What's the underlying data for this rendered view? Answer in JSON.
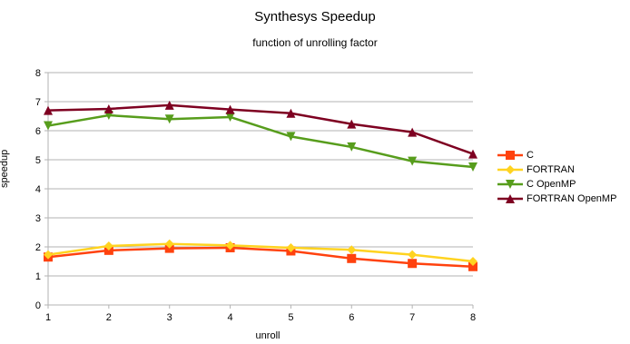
{
  "chart_data": {
    "type": "line",
    "title": "Synthesys Speedup",
    "subtitle": "function of unrolling factor",
    "xlabel": "unroll",
    "ylabel": "speedup",
    "x": [
      1,
      2,
      3,
      4,
      5,
      6,
      7,
      8
    ],
    "xlim": [
      1,
      8
    ],
    "ylim": [
      0,
      8
    ],
    "yticks": [
      0,
      1,
      2,
      3,
      4,
      5,
      6,
      7,
      8
    ],
    "grid": true,
    "legend_position": "right",
    "series": [
      {
        "name": "C",
        "color": "#ff420e",
        "marker": "square",
        "values": [
          1.65,
          1.88,
          1.95,
          1.97,
          1.86,
          1.6,
          1.43,
          1.32
        ]
      },
      {
        "name": "FORTRAN",
        "color": "#ffd320",
        "marker": "diamond",
        "values": [
          1.73,
          2.03,
          2.1,
          2.05,
          1.97,
          1.9,
          1.73,
          1.5
        ]
      },
      {
        "name": "C OpenMP",
        "color": "#579d1c",
        "marker": "triangle-down",
        "values": [
          6.17,
          6.53,
          6.4,
          6.47,
          5.8,
          5.44,
          4.95,
          4.75
        ]
      },
      {
        "name": "FORTRAN OpenMP",
        "color": "#7e0021",
        "marker": "triangle-up",
        "values": [
          6.7,
          6.75,
          6.88,
          6.73,
          6.6,
          6.23,
          5.95,
          5.2
        ]
      }
    ]
  }
}
